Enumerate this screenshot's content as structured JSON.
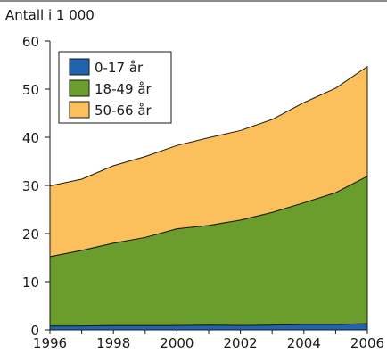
{
  "chart_data": {
    "type": "area",
    "stacked": true,
    "title": "Antall i 1 000",
    "xlabel": "",
    "ylabel": "Antall i 1 000",
    "x": [
      1996,
      1997,
      1998,
      1999,
      2000,
      2001,
      2002,
      2003,
      2004,
      2005,
      2006
    ],
    "x_ticks": [
      "1996",
      "1998",
      "2000",
      "2002",
      "2004",
      "2006"
    ],
    "y_ticks": [
      "0",
      "10",
      "20",
      "30",
      "40",
      "50",
      "60"
    ],
    "xlim": [
      1996,
      2006
    ],
    "ylim": [
      0,
      60
    ],
    "grid": false,
    "legend_position": "top-left",
    "series": [
      {
        "name": "0-17 år",
        "color": "#1f64b1",
        "values": [
          0.8,
          0.8,
          0.9,
          0.9,
          0.9,
          1.0,
          0.9,
          1.0,
          1.1,
          1.1,
          1.3
        ]
      },
      {
        "name": "18-49 år",
        "color": "#6a9d2b",
        "values": [
          14.4,
          15.7,
          17.1,
          18.3,
          20.1,
          20.7,
          21.9,
          23.4,
          25.3,
          27.4,
          30.6
        ]
      },
      {
        "name": "50-66 år",
        "color": "#fbc05c",
        "values": [
          14.7,
          14.8,
          16.1,
          16.8,
          17.3,
          18.2,
          18.6,
          19.3,
          20.8,
          21.7,
          22.8
        ]
      }
    ]
  }
}
